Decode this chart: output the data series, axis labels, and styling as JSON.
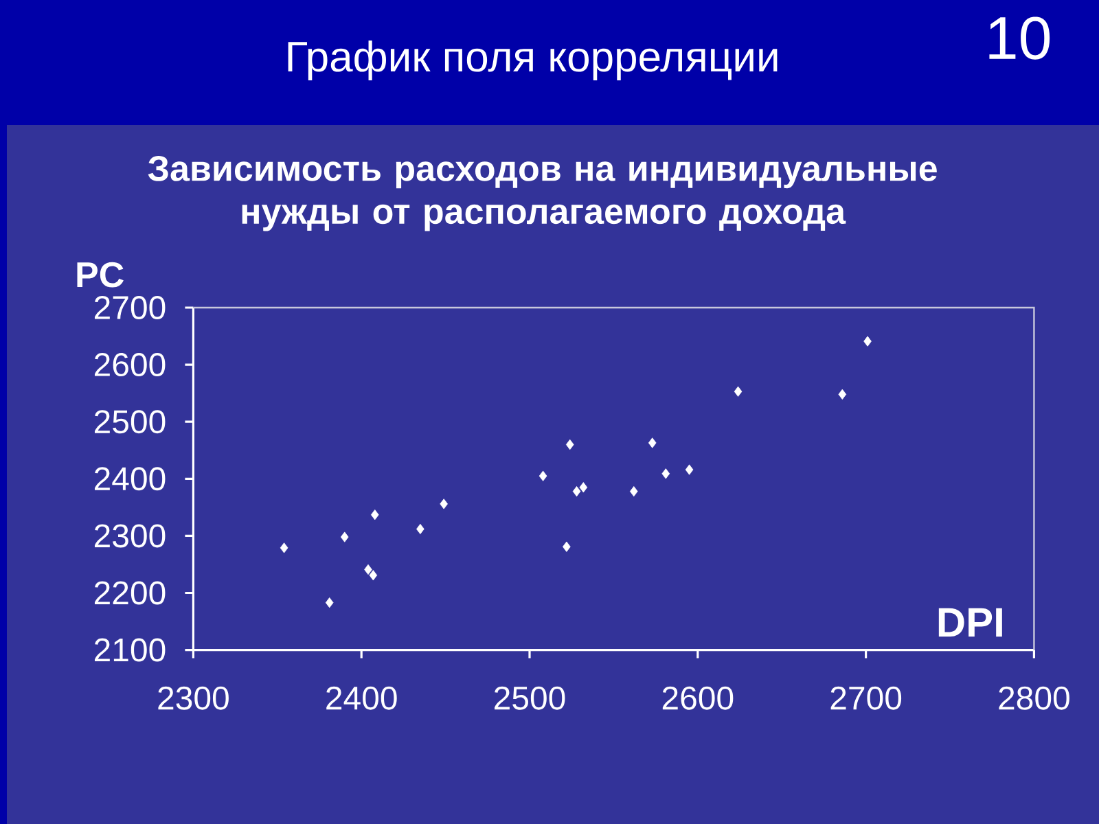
{
  "chart_data": {
    "type": "scatter",
    "title": "График поля корреляции",
    "subtitle": "Зависимость расходов на индивидуальные нужды от располагаемого дохода",
    "xlabel": "DPI",
    "ylabel": "PC",
    "annotations": [
      "10"
    ],
    "x": [
      2354,
      2381,
      2390,
      2404,
      2407,
      2408,
      2435,
      2449,
      2508,
      2522,
      2524,
      2528,
      2532,
      2562,
      2573,
      2581,
      2595,
      2624,
      2686,
      2701
    ],
    "values": [
      2279,
      2183,
      2298,
      2241,
      2231,
      2337,
      2312,
      2356,
      2405,
      2281,
      2460,
      2378,
      2385,
      2378,
      2463,
      2409,
      2416,
      2553,
      2548,
      2641
    ],
    "color": "#ffffff",
    "marker": "diamond",
    "xlim": [
      2300,
      2800
    ],
    "ylim": [
      2100,
      2700
    ],
    "xticks": [
      2300,
      2400,
      2500,
      2600,
      2700,
      2800
    ],
    "yticks": [
      2100,
      2200,
      2300,
      2400,
      2500,
      2600,
      2700
    ],
    "grid": false
  }
}
